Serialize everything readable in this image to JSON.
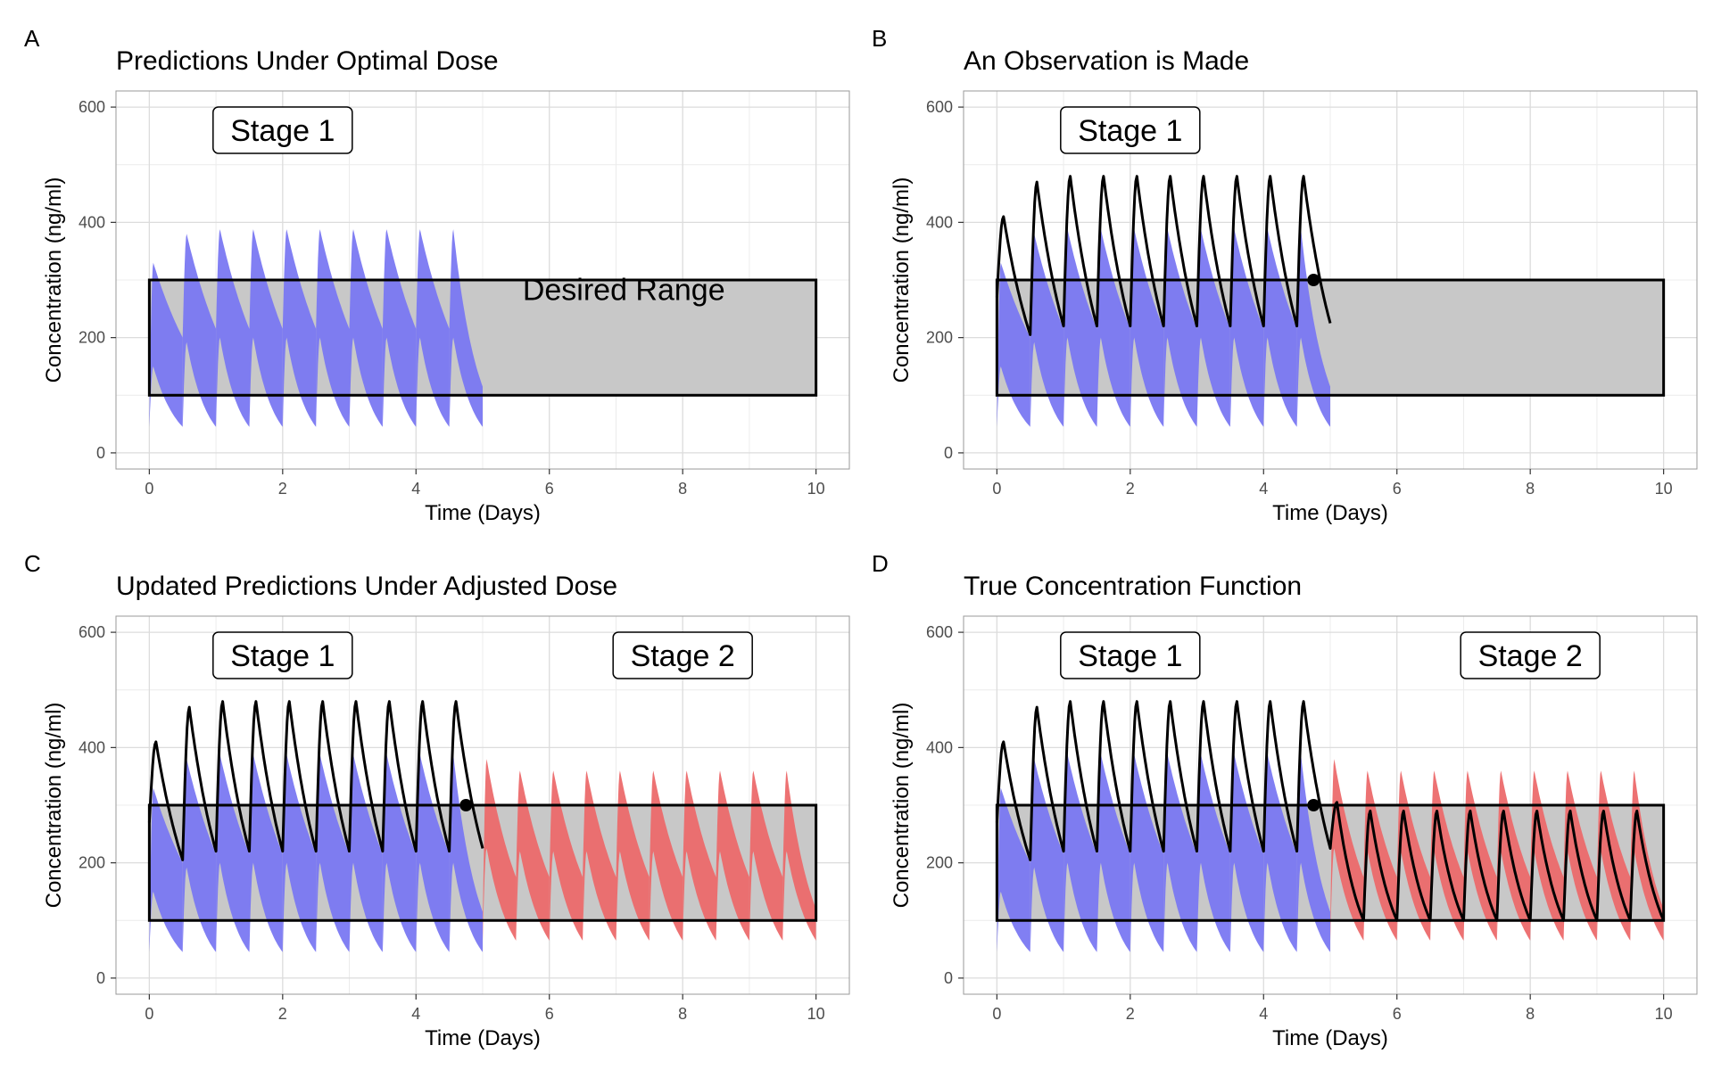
{
  "chart_data": [
    {
      "type": "line",
      "panel": "A",
      "title": "Predictions Under Optimal Dose",
      "xlabel": "Time (Days)",
      "ylabel": "Concentration (ng/ml)",
      "xlim": [
        0,
        10
      ],
      "ylim": [
        0,
        600
      ],
      "x_ticks": [
        0,
        2,
        4,
        6,
        8,
        10
      ],
      "y_ticks": [
        0,
        200,
        400,
        600
      ],
      "grid": true,
      "desired_range": [
        100,
        300
      ],
      "desired_range_label": "Desired Range",
      "stage_labels": [
        {
          "text": "Stage 1",
          "x": 2.0,
          "y": 560
        }
      ],
      "series": [
        {
          "name": "",
          "kind": "band",
          "color": "#7a78f2",
          "dose_times": [
            0,
            0.5,
            1,
            1.5,
            2,
            2.5,
            3,
            3.5,
            4,
            4.5
          ],
          "t_end": 5,
          "peak_upper": [
            330,
            380,
            388,
            388,
            388,
            388,
            388,
            388,
            388,
            388
          ],
          "peak_lower": [
            150,
            192,
            200,
            200,
            200,
            200,
            200,
            200,
            200,
            200
          ],
          "trough_upper": [
            200,
            215,
            215,
            215,
            215,
            215,
            215,
            215,
            215,
            115
          ],
          "trough_lower": [
            45,
            45,
            45,
            45,
            45,
            45,
            45,
            45,
            45,
            45
          ]
        }
      ]
    },
    {
      "type": "line",
      "panel": "B",
      "title": "An Observation is Made",
      "xlabel": "Time (Days)",
      "ylabel": "Concentration (ng/ml)",
      "xlim": [
        0,
        10
      ],
      "ylim": [
        0,
        600
      ],
      "x_ticks": [
        0,
        2,
        4,
        6,
        8,
        10
      ],
      "y_ticks": [
        0,
        200,
        400,
        600
      ],
      "grid": true,
      "desired_range": [
        100,
        300
      ],
      "stage_labels": [
        {
          "text": "Stage 1",
          "x": 2.0,
          "y": 560
        }
      ],
      "series": [
        {
          "name": "",
          "kind": "band",
          "color": "#7a78f2",
          "dose_times": [
            0,
            0.5,
            1,
            1.5,
            2,
            2.5,
            3,
            3.5,
            4,
            4.5
          ],
          "t_end": 5,
          "peak_upper": [
            330,
            380,
            388,
            388,
            388,
            388,
            388,
            388,
            388,
            388
          ],
          "peak_lower": [
            150,
            192,
            200,
            200,
            200,
            200,
            200,
            200,
            200,
            200
          ],
          "trough_upper": [
            200,
            215,
            215,
            215,
            215,
            215,
            215,
            215,
            215,
            115
          ],
          "trough_lower": [
            45,
            45,
            45,
            45,
            45,
            45,
            45,
            45,
            45,
            45
          ]
        },
        {
          "name": "",
          "kind": "line",
          "color": "#000000",
          "dose_times": [
            0,
            0.5,
            1,
            1.5,
            2,
            2.5,
            3,
            3.5,
            4,
            4.5
          ],
          "t_end": 5,
          "start": 270,
          "peaks": [
            410,
            470,
            480,
            480,
            480,
            480,
            480,
            480,
            480,
            480
          ],
          "troughs": [
            205,
            220,
            220,
            220,
            220,
            220,
            220,
            220,
            220,
            225
          ]
        }
      ],
      "observation": {
        "x": 4.75,
        "y": 300
      }
    },
    {
      "type": "line",
      "panel": "C",
      "title": "Updated Predictions Under Adjusted Dose",
      "xlabel": "Time (Days)",
      "ylabel": "Concentration (ng/ml)",
      "xlim": [
        0,
        10
      ],
      "ylim": [
        0,
        600
      ],
      "x_ticks": [
        0,
        2,
        4,
        6,
        8,
        10
      ],
      "y_ticks": [
        0,
        200,
        400,
        600
      ],
      "grid": true,
      "desired_range": [
        100,
        300
      ],
      "stage_labels": [
        {
          "text": "Stage 1",
          "x": 2.0,
          "y": 560
        },
        {
          "text": "Stage 2",
          "x": 8.0,
          "y": 560
        }
      ],
      "series": [
        {
          "name": "",
          "kind": "band",
          "color": "#7a78f2",
          "dose_times": [
            0,
            0.5,
            1,
            1.5,
            2,
            2.5,
            3,
            3.5,
            4,
            4.5
          ],
          "t_end": 5,
          "peak_upper": [
            330,
            380,
            388,
            388,
            388,
            388,
            388,
            388,
            388,
            388
          ],
          "peak_lower": [
            150,
            192,
            200,
            200,
            200,
            200,
            200,
            200,
            200,
            200
          ],
          "trough_upper": [
            200,
            215,
            215,
            215,
            215,
            215,
            215,
            215,
            215,
            115
          ],
          "trough_lower": [
            45,
            45,
            45,
            45,
            45,
            45,
            45,
            45,
            45,
            45
          ]
        },
        {
          "name": "",
          "kind": "line",
          "color": "#000000",
          "dose_times": [
            0,
            0.5,
            1,
            1.5,
            2,
            2.5,
            3,
            3.5,
            4,
            4.5
          ],
          "t_end": 5,
          "start": 270,
          "peaks": [
            410,
            470,
            480,
            480,
            480,
            480,
            480,
            480,
            480,
            480
          ],
          "troughs": [
            205,
            220,
            220,
            220,
            220,
            220,
            220,
            220,
            220,
            225
          ]
        },
        {
          "name": "",
          "kind": "band",
          "color": "#ec6a6c",
          "dose_times": [
            5,
            5.5,
            6,
            6.5,
            7,
            7.5,
            8,
            8.5,
            9,
            9.5
          ],
          "t_end": 10,
          "peak_upper": [
            380,
            360,
            360,
            360,
            360,
            360,
            360,
            360,
            360,
            360
          ],
          "peak_lower": [
            225,
            220,
            220,
            220,
            220,
            220,
            220,
            220,
            220,
            220
          ],
          "trough_upper": [
            175,
            175,
            175,
            175,
            175,
            175,
            175,
            175,
            175,
            120
          ],
          "trough_lower": [
            65,
            65,
            65,
            65,
            65,
            65,
            65,
            65,
            65,
            65
          ]
        }
      ],
      "observation": {
        "x": 4.75,
        "y": 300
      }
    },
    {
      "type": "line",
      "panel": "D",
      "title": "True Concentration Function",
      "xlabel": "Time (Days)",
      "ylabel": "Concentration (ng/ml)",
      "xlim": [
        0,
        10
      ],
      "ylim": [
        0,
        600
      ],
      "x_ticks": [
        0,
        2,
        4,
        6,
        8,
        10
      ],
      "y_ticks": [
        0,
        200,
        400,
        600
      ],
      "grid": true,
      "desired_range": [
        100,
        300
      ],
      "stage_labels": [
        {
          "text": "Stage 1",
          "x": 2.0,
          "y": 560
        },
        {
          "text": "Stage 2",
          "x": 8.0,
          "y": 560
        }
      ],
      "series": [
        {
          "name": "",
          "kind": "band",
          "color": "#7a78f2",
          "dose_times": [
            0,
            0.5,
            1,
            1.5,
            2,
            2.5,
            3,
            3.5,
            4,
            4.5
          ],
          "t_end": 5,
          "peak_upper": [
            330,
            380,
            388,
            388,
            388,
            388,
            388,
            388,
            388,
            388
          ],
          "peak_lower": [
            150,
            192,
            200,
            200,
            200,
            200,
            200,
            200,
            200,
            200
          ],
          "trough_upper": [
            200,
            215,
            215,
            215,
            215,
            215,
            215,
            215,
            215,
            115
          ],
          "trough_lower": [
            45,
            45,
            45,
            45,
            45,
            45,
            45,
            45,
            45,
            45
          ]
        },
        {
          "name": "",
          "kind": "band",
          "color": "#ec6a6c",
          "dose_times": [
            5,
            5.5,
            6,
            6.5,
            7,
            7.5,
            8,
            8.5,
            9,
            9.5
          ],
          "t_end": 10,
          "peak_upper": [
            380,
            360,
            360,
            360,
            360,
            360,
            360,
            360,
            360,
            360
          ],
          "peak_lower": [
            225,
            220,
            220,
            220,
            220,
            220,
            220,
            220,
            220,
            220
          ],
          "trough_upper": [
            175,
            175,
            175,
            175,
            175,
            175,
            175,
            175,
            175,
            120
          ],
          "trough_lower": [
            65,
            65,
            65,
            65,
            65,
            65,
            65,
            65,
            65,
            65
          ]
        },
        {
          "name": "",
          "kind": "line",
          "color": "#000000",
          "dose_times": [
            0,
            0.5,
            1,
            1.5,
            2,
            2.5,
            3,
            3.5,
            4,
            4.5,
            5,
            5.5,
            6,
            6.5,
            7,
            7.5,
            8,
            8.5,
            9,
            9.5
          ],
          "t_end": 10,
          "start": 270,
          "peaks": [
            410,
            470,
            480,
            480,
            480,
            480,
            480,
            480,
            480,
            480,
            305,
            290,
            290,
            290,
            290,
            290,
            290,
            290,
            290,
            290
          ],
          "troughs": [
            205,
            220,
            220,
            220,
            220,
            220,
            220,
            220,
            220,
            225,
            100,
            100,
            100,
            100,
            100,
            100,
            100,
            100,
            100,
            100
          ]
        }
      ],
      "observation": {
        "x": 4.75,
        "y": 300
      }
    }
  ]
}
